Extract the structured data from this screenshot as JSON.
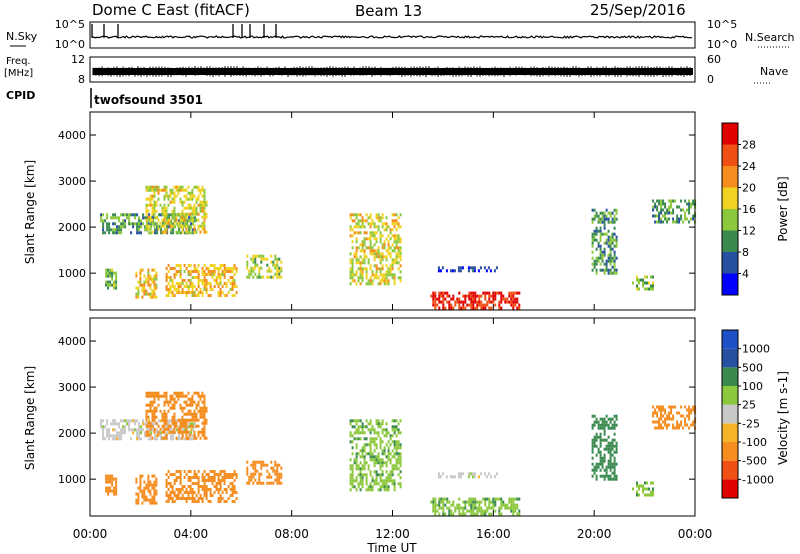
{
  "header": {
    "title": "Dome C East (fitACF)",
    "beam": "Beam 13",
    "date": "25/Sep/2016"
  },
  "top_panels": {
    "nsky_label": "N.Sky",
    "nsky_ticks": [
      "10^5",
      "10^0"
    ],
    "nsearch_label": "N.Search",
    "nsearch_ticks": [
      "10^5",
      "10^0"
    ],
    "freq_label_1": "Freq.",
    "freq_label_2": "[MHz]",
    "freq_ticks": [
      "12",
      "8"
    ],
    "nave_label": "Nave",
    "nave_ticks": [
      "60",
      "0"
    ],
    "cpid_label": "CPID",
    "cpid_value": "twofsound 3501"
  },
  "colors": {
    "power_scale": [
      "#0000ff",
      "#2850a0",
      "#3a8a50",
      "#8cc83c",
      "#f0d220",
      "#f58c1e",
      "#f05014",
      "#e10000"
    ],
    "velocity_scale": [
      "#e10000",
      "#f05014",
      "#f58c1e",
      "#f5b428",
      "#c8c8c8",
      "#8cc83c",
      "#3a8a50",
      "#2850a0",
      "#1e50c8"
    ]
  },
  "chart_data": [
    {
      "type": "heatmap",
      "panel": "power",
      "ylabel": "Slant Range [km]",
      "yticks": [
        "4000",
        "3000",
        "2000",
        "1000"
      ],
      "ylim": [
        200,
        4500
      ],
      "xlim": [
        0,
        24
      ],
      "xticks": [
        "00:00",
        "04:00",
        "08:00",
        "12:00",
        "16:00",
        "20:00",
        "00:00"
      ],
      "colorbar_label": "Power [dB]",
      "colorbar_ticks": [
        "28",
        "24",
        "20",
        "16",
        "12",
        "8",
        "4"
      ],
      "clim": [
        0,
        30
      ],
      "echo_regions": [
        {
          "t0": 0.4,
          "t1": 4.2,
          "r0": 1850,
          "r1": 2300,
          "value": 10
        },
        {
          "t0": 2.2,
          "t1": 4.6,
          "r0": 1900,
          "r1": 2900,
          "value": 16
        },
        {
          "t0": 0.6,
          "t1": 1.0,
          "r0": 700,
          "r1": 1100,
          "value": 12
        },
        {
          "t0": 1.8,
          "t1": 2.6,
          "r0": 500,
          "r1": 1100,
          "value": 18
        },
        {
          "t0": 3.0,
          "t1": 5.8,
          "r0": 500,
          "r1": 1200,
          "value": 18
        },
        {
          "t0": 6.2,
          "t1": 7.6,
          "r0": 900,
          "r1": 1400,
          "value": 14
        },
        {
          "t0": 10.3,
          "t1": 12.3,
          "r0": 800,
          "r1": 2300,
          "value": 16
        },
        {
          "t0": 13.8,
          "t1": 16.2,
          "r0": 1050,
          "r1": 1150,
          "value": 4
        },
        {
          "t0": 13.5,
          "t1": 17.0,
          "r0": 250,
          "r1": 600,
          "value": 27
        },
        {
          "t0": 19.9,
          "t1": 20.9,
          "r0": 1000,
          "r1": 2400,
          "value": 10
        },
        {
          "t0": 21.5,
          "t1": 22.3,
          "r0": 650,
          "r1": 950,
          "value": 12
        },
        {
          "t0": 22.3,
          "t1": 24.0,
          "r0": 2100,
          "r1": 2600,
          "value": 10
        }
      ]
    },
    {
      "type": "heatmap",
      "panel": "velocity",
      "ylabel": "Slant Range [km]",
      "yticks": [
        "4000",
        "3000",
        "2000",
        "1000"
      ],
      "ylim": [
        200,
        4500
      ],
      "xlim": [
        0,
        24
      ],
      "xlabel": "Time UT",
      "xticks": [
        "00:00",
        "04:00",
        "08:00",
        "12:00",
        "16:00",
        "20:00",
        "00:00"
      ],
      "colorbar_label": "Velocity [m s-1]",
      "colorbar_ticks": [
        "1000",
        "500",
        "100",
        "25",
        "-25",
        "-100",
        "-500",
        "-1000"
      ],
      "echo_regions": [
        {
          "t0": 0.4,
          "t1": 4.2,
          "r0": 1850,
          "r1": 2300,
          "value": 0
        },
        {
          "t0": 2.2,
          "t1": 4.6,
          "r0": 1900,
          "r1": 2900,
          "value": -150
        },
        {
          "t0": 0.6,
          "t1": 1.0,
          "r0": 700,
          "r1": 1100,
          "value": -150
        },
        {
          "t0": 1.8,
          "t1": 2.6,
          "r0": 500,
          "r1": 1100,
          "value": -150
        },
        {
          "t0": 3.0,
          "t1": 5.8,
          "r0": 500,
          "r1": 1200,
          "value": -150
        },
        {
          "t0": 6.2,
          "t1": 7.6,
          "r0": 900,
          "r1": 1400,
          "value": -150
        },
        {
          "t0": 10.3,
          "t1": 12.3,
          "r0": 800,
          "r1": 2300,
          "value": 80
        },
        {
          "t0": 13.8,
          "t1": 16.2,
          "r0": 1050,
          "r1": 1150,
          "value": 0
        },
        {
          "t0": 13.5,
          "t1": 17.0,
          "r0": 250,
          "r1": 600,
          "value": 80
        },
        {
          "t0": 19.9,
          "t1": 20.9,
          "r0": 1000,
          "r1": 2400,
          "value": 300
        },
        {
          "t0": 21.5,
          "t1": 22.3,
          "r0": 650,
          "r1": 950,
          "value": 80
        },
        {
          "t0": 22.3,
          "t1": 24.0,
          "r0": 2100,
          "r1": 2600,
          "value": -150
        }
      ]
    }
  ]
}
